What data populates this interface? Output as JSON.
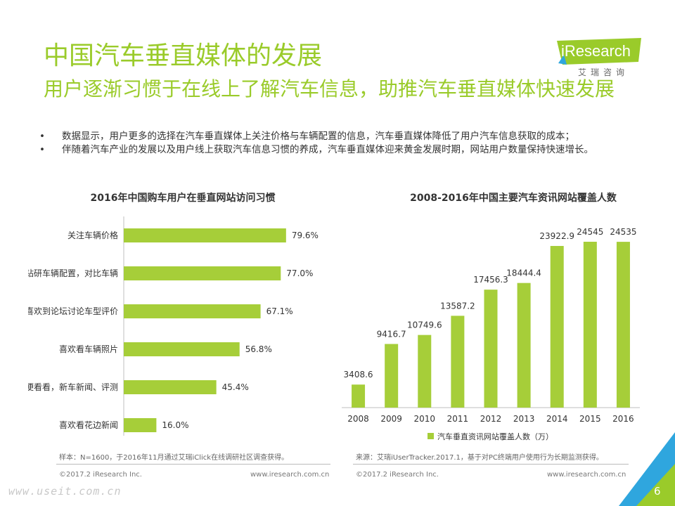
{
  "slide": {
    "title": "中国汽车垂直媒体的发展",
    "subtitle": "用户逐渐习惯于在线上了解汽车信息，助推汽车垂直媒体快速发展",
    "bullets": [
      "数据显示，用户更多的选择在汽车垂直媒体上关注价格与车辆配置的信息，汽车垂直媒体降低了用户汽车信息获取的成本；",
      "伴随着汽车产业的发展以及用户线上获取汽车信息习惯的养成，汽车垂直媒体迎来黄金发展时期，网站用户数量保持快速增长。"
    ],
    "bullet_mark": "•",
    "logo": {
      "name": "iResearch",
      "sub": "艾瑞咨询"
    },
    "page_number": "6",
    "watermark": "www.useit.com.cn",
    "accent_color": "#9acb2a"
  },
  "left_panel": {
    "note": "样本：N=1600，于2016年11月通过艾瑞iClick在线调研社区调查获得。",
    "footer_left": "©2017.2 iResearch Inc.",
    "footer_right": "www.iresearch.com.cn"
  },
  "right_panel": {
    "note": "来源：艾瑞iUserTracker.2017.1，基于对PC终端用户使用行为长期监测获得。",
    "footer_left": "©2017.2 iResearch Inc.",
    "footer_right": "www.iresearch.com.cn"
  },
  "chart_data": [
    {
      "type": "bar",
      "orientation": "horizontal",
      "title": "2016年中国购车用户在垂直网站访问习惯",
      "categories": [
        "关注车辆价格",
        "喜欢钻研车辆配置，对比车辆",
        "喜欢到论坛讨论车型评价",
        "喜欢看车辆照片",
        "随便看看，新车新闻、评测",
        "喜欢看花边新闻"
      ],
      "values": [
        79.6,
        77.0,
        67.1,
        56.8,
        45.4,
        16.0
      ],
      "value_labels": [
        "79.6%",
        "77.0%",
        "67.1%",
        "56.8%",
        "45.4%",
        "16.0%"
      ],
      "unit": "%",
      "xlim": [
        0,
        100
      ],
      "grid": false,
      "color": "#a6ce39"
    },
    {
      "type": "bar",
      "orientation": "vertical",
      "title": "2008-2016年中国主要汽车资讯网站覆盖人数",
      "categories": [
        "2008",
        "2009",
        "2010",
        "2011",
        "2012",
        "2013",
        "2014",
        "2015",
        "2016"
      ],
      "series": [
        {
          "name": "汽车垂直资讯网站覆盖人数（万）",
          "values": [
            3408.6,
            9416.7,
            10749.6,
            13587.2,
            17456.3,
            18444.4,
            23922.9,
            24545,
            24535
          ]
        }
      ],
      "value_labels": [
        "3408.6",
        "9416.7",
        "10749.6",
        "13587.2",
        "17456.3",
        "18444.4",
        "23922.9",
        "24545",
        "24535"
      ],
      "ylim": [
        0,
        26000
      ],
      "grid": false,
      "legend": "bottom",
      "color": "#a6ce39"
    }
  ]
}
